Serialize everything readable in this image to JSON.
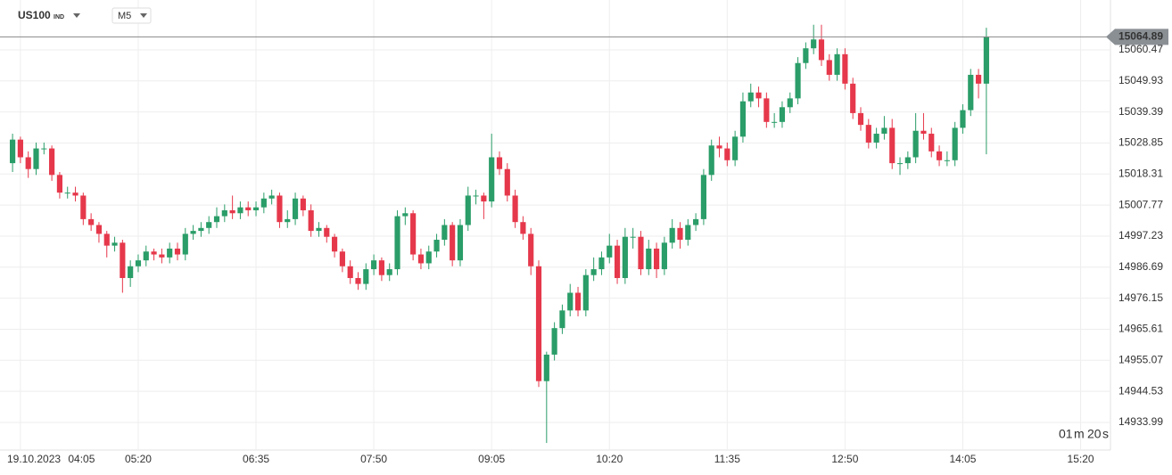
{
  "header": {
    "symbol": "US100",
    "symbol_type": "IND",
    "timeframe": "M5"
  },
  "countdown": {
    "minutes": "01",
    "m": "m",
    "seconds": "20",
    "s": "s"
  },
  "chart_data": {
    "type": "candlestick",
    "up_color": "#2a9d68",
    "down_color": "#e6384b",
    "grid": true,
    "date_label": "19.10.2023",
    "x": [
      240,
      245,
      250,
      255,
      260,
      265,
      270,
      275,
      280,
      285,
      290,
      295,
      300,
      305,
      310,
      315,
      320,
      325,
      330,
      335,
      340,
      345,
      350,
      355,
      360,
      365,
      370,
      375,
      380,
      385,
      390,
      395,
      400,
      405,
      410,
      415,
      420,
      425,
      430,
      435,
      440,
      445,
      450,
      455,
      460,
      465,
      470,
      475,
      480,
      485,
      490,
      495,
      500,
      505,
      510,
      515,
      520,
      525,
      530,
      535,
      540,
      545,
      550,
      555,
      560,
      565,
      570,
      575,
      580,
      585,
      590,
      595,
      600,
      605,
      610,
      615,
      620,
      625,
      630,
      635,
      640,
      645,
      650,
      655,
      660,
      665,
      670,
      675,
      680,
      685,
      690,
      695,
      700,
      705,
      710,
      715,
      720,
      725,
      730,
      735,
      740,
      745,
      750,
      755,
      760,
      765,
      770,
      775,
      780,
      785,
      790,
      795,
      800,
      805,
      810,
      815,
      820,
      825,
      830,
      835,
      840,
      845,
      850,
      855,
      860
    ],
    "candles": [
      [
        15022,
        15032,
        15019,
        15030
      ],
      [
        15030,
        15031,
        15022,
        15024
      ],
      [
        15024,
        15026,
        15017,
        15020
      ],
      [
        15020,
        15029,
        15018,
        15027
      ],
      [
        15027,
        15029,
        15025,
        15027
      ],
      [
        15027,
        15028,
        15016,
        15018
      ],
      [
        15018,
        15019,
        15010,
        15012
      ],
      [
        15012,
        15014,
        15010,
        15012
      ],
      [
        15012,
        15014,
        15009,
        15011
      ],
      [
        15011,
        15012,
        15001,
        15003
      ],
      [
        15003,
        15005,
        14999,
        15001
      ],
      [
        15001,
        15002,
        14995,
        14998
      ],
      [
        14998,
        14999,
        14990,
        14994
      ],
      [
        14994,
        14997,
        14992,
        14995
      ],
      [
        14995,
        14996,
        14978,
        14983
      ],
      [
        14983,
        14989,
        14980,
        14987
      ],
      [
        14987,
        14991,
        14985,
        14989
      ],
      [
        14989,
        14994,
        14987,
        14992
      ],
      [
        14992,
        14993,
        14989,
        14991
      ],
      [
        14991,
        14993,
        14988,
        14990
      ],
      [
        14990,
        14995,
        14988,
        14993
      ],
      [
        14993,
        14995,
        14989,
        14991
      ],
      [
        14991,
        15000,
        14989,
        14998
      ],
      [
        14998,
        15001,
        14996,
        14999
      ],
      [
        14999,
        15002,
        14997,
        15000
      ],
      [
        15000,
        15004,
        14998,
        15002
      ],
      [
        15002,
        15007,
        15000,
        15004
      ],
      [
        15004,
        15008,
        15002,
        15006
      ],
      [
        15006,
        15011,
        15003,
        15005
      ],
      [
        15005,
        15009,
        15003,
        15007
      ],
      [
        15007,
        15009,
        15004,
        15006
      ],
      [
        15006,
        15009,
        15004,
        15007
      ],
      [
        15007,
        15012,
        15005,
        15010
      ],
      [
        15010,
        15013,
        15008,
        15011
      ],
      [
        15011,
        15012,
        15000,
        15002
      ],
      [
        15002,
        15006,
        15000,
        15003
      ],
      [
        15003,
        15012,
        15001,
        15010
      ],
      [
        15010,
        15011,
        15004,
        15006
      ],
      [
        15006,
        15008,
        14997,
        14999
      ],
      [
        14999,
        15002,
        14997,
        15000
      ],
      [
        15000,
        15001,
        14995,
        14997
      ],
      [
        14997,
        14998,
        14990,
        14992
      ],
      [
        14992,
        14993,
        14985,
        14987
      ],
      [
        14987,
        14989,
        14981,
        14983
      ],
      [
        14983,
        14985,
        14979,
        14981
      ],
      [
        14981,
        14988,
        14979,
        14986
      ],
      [
        14986,
        14991,
        14984,
        14989
      ],
      [
        14989,
        14990,
        14982,
        14984
      ],
      [
        14984,
        14988,
        14982,
        14986
      ],
      [
        14986,
        15006,
        14984,
        15004
      ],
      [
        15004,
        15007,
        15001,
        15005
      ],
      [
        15005,
        15006,
        14989,
        14991
      ],
      [
        14991,
        14993,
        14986,
        14988
      ],
      [
        14988,
        14994,
        14986,
        14992
      ],
      [
        14992,
        14998,
        14990,
        14996
      ],
      [
        14996,
        15003,
        14994,
        15001
      ],
      [
        15001,
        15002,
        14987,
        14989
      ],
      [
        14989,
        15003,
        14987,
        15001
      ],
      [
        15001,
        15014,
        14999,
        15011
      ],
      [
        15011,
        15013,
        15008,
        15011
      ],
      [
        15011,
        15012,
        15003,
        15009
      ],
      [
        15009,
        15032,
        15007,
        15024
      ],
      [
        15024,
        15026,
        15018,
        15020
      ],
      [
        15020,
        15022,
        15009,
        15011
      ],
      [
        15011,
        15013,
        15000,
        15002
      ],
      [
        15002,
        15004,
        14996,
        14998
      ],
      [
        14998,
        15000,
        14984,
        14987
      ],
      [
        14987,
        14989,
        14946,
        14948
      ],
      [
        14948,
        14958,
        14927,
        14957
      ],
      [
        14957,
        14968,
        14955,
        14966
      ],
      [
        14966,
        14974,
        14964,
        14972
      ],
      [
        14972,
        14981,
        14970,
        14978
      ],
      [
        14978,
        14980,
        14970,
        14972
      ],
      [
        14972,
        14986,
        14970,
        14984
      ],
      [
        14984,
        14990,
        14982,
        14986
      ],
      [
        14986,
        14992,
        14984,
        14990
      ],
      [
        14990,
        14998,
        14988,
        14994
      ],
      [
        14994,
        14996,
        14981,
        14983
      ],
      [
        14983,
        15000,
        14981,
        14997
      ],
      [
        14997,
        15000,
        14993,
        14997
      ],
      [
        14997,
        14999,
        14984,
        14986
      ],
      [
        14986,
        14996,
        14984,
        14993
      ],
      [
        14993,
        14995,
        14983,
        14986
      ],
      [
        14986,
        14997,
        14984,
        14995
      ],
      [
        14995,
        15003,
        14993,
        15000
      ],
      [
        15000,
        15002,
        14993,
        14996
      ],
      [
        14996,
        15003,
        14994,
        15001
      ],
      [
        15001,
        15005,
        14999,
        15003
      ],
      [
        15003,
        15020,
        15001,
        15018
      ],
      [
        15018,
        15030,
        15016,
        15028
      ],
      [
        15028,
        15031,
        15024,
        15027
      ],
      [
        15027,
        15029,
        15021,
        15023
      ],
      [
        15023,
        15033,
        15021,
        15031
      ],
      [
        15031,
        15046,
        15029,
        15043
      ],
      [
        15043,
        15049,
        15041,
        15046
      ],
      [
        15046,
        15048,
        15041,
        15044
      ],
      [
        15044,
        15046,
        15034,
        15036
      ],
      [
        15036,
        15039,
        15034,
        15036
      ],
      [
        15036,
        15043,
        15034,
        15041
      ],
      [
        15041,
        15046,
        15039,
        15044
      ],
      [
        15044,
        15058,
        15042,
        15056
      ],
      [
        15056,
        15063,
        15054,
        15061
      ],
      [
        15061,
        15069,
        15059,
        15064
      ],
      [
        15064,
        15069,
        15055,
        15057
      ],
      [
        15057,
        15059,
        15050,
        15052
      ],
      [
        15052,
        15061,
        15050,
        15059
      ],
      [
        15059,
        15061,
        15047,
        15049
      ],
      [
        15049,
        15051,
        15037,
        15039
      ],
      [
        15039,
        15041,
        15033,
        15035
      ],
      [
        15035,
        15037,
        15027,
        15029
      ],
      [
        15029,
        15034,
        15027,
        15032
      ],
      [
        15032,
        15038,
        15030,
        15034
      ],
      [
        15034,
        15037,
        15020,
        15022
      ],
      [
        15022,
        15024,
        15018,
        15022
      ],
      [
        15022,
        15026,
        15020,
        15024
      ],
      [
        15024,
        15039,
        15022,
        15033
      ],
      [
        15033,
        15039,
        15030,
        15032
      ],
      [
        15032,
        15034,
        15024,
        15026
      ],
      [
        15026,
        15028,
        15021,
        15023
      ],
      [
        15023,
        15026,
        15021,
        15023
      ],
      [
        15023,
        15036,
        15021,
        15034
      ],
      [
        15034,
        15042,
        15032,
        15040
      ],
      [
        15040,
        15054,
        15038,
        15052
      ],
      [
        15052,
        15054,
        15044,
        15049
      ],
      [
        15049,
        15068,
        15025,
        15064.89
      ]
    ],
    "xlim": [
      232,
      939
    ],
    "xticks": [
      {
        "value": 245,
        "label": "04:05"
      },
      {
        "value": 320,
        "label": "05:20"
      },
      {
        "value": 395,
        "label": "06:35"
      },
      {
        "value": 470,
        "label": "07:50"
      },
      {
        "value": 545,
        "label": "09:05"
      },
      {
        "value": 620,
        "label": "10:20"
      },
      {
        "value": 695,
        "label": "11:35"
      },
      {
        "value": 770,
        "label": "12:50"
      },
      {
        "value": 845,
        "label": "14:05"
      },
      {
        "value": 920,
        "label": "15:20"
      }
    ],
    "ylim": [
      14924.6,
      15077.4
    ],
    "yticks": [
      15060.47,
      15049.93,
      15039.39,
      15028.85,
      15018.31,
      15007.77,
      14997.23,
      14986.69,
      14976.15,
      14965.61,
      14955.07,
      14944.53,
      14933.99
    ]
  }
}
